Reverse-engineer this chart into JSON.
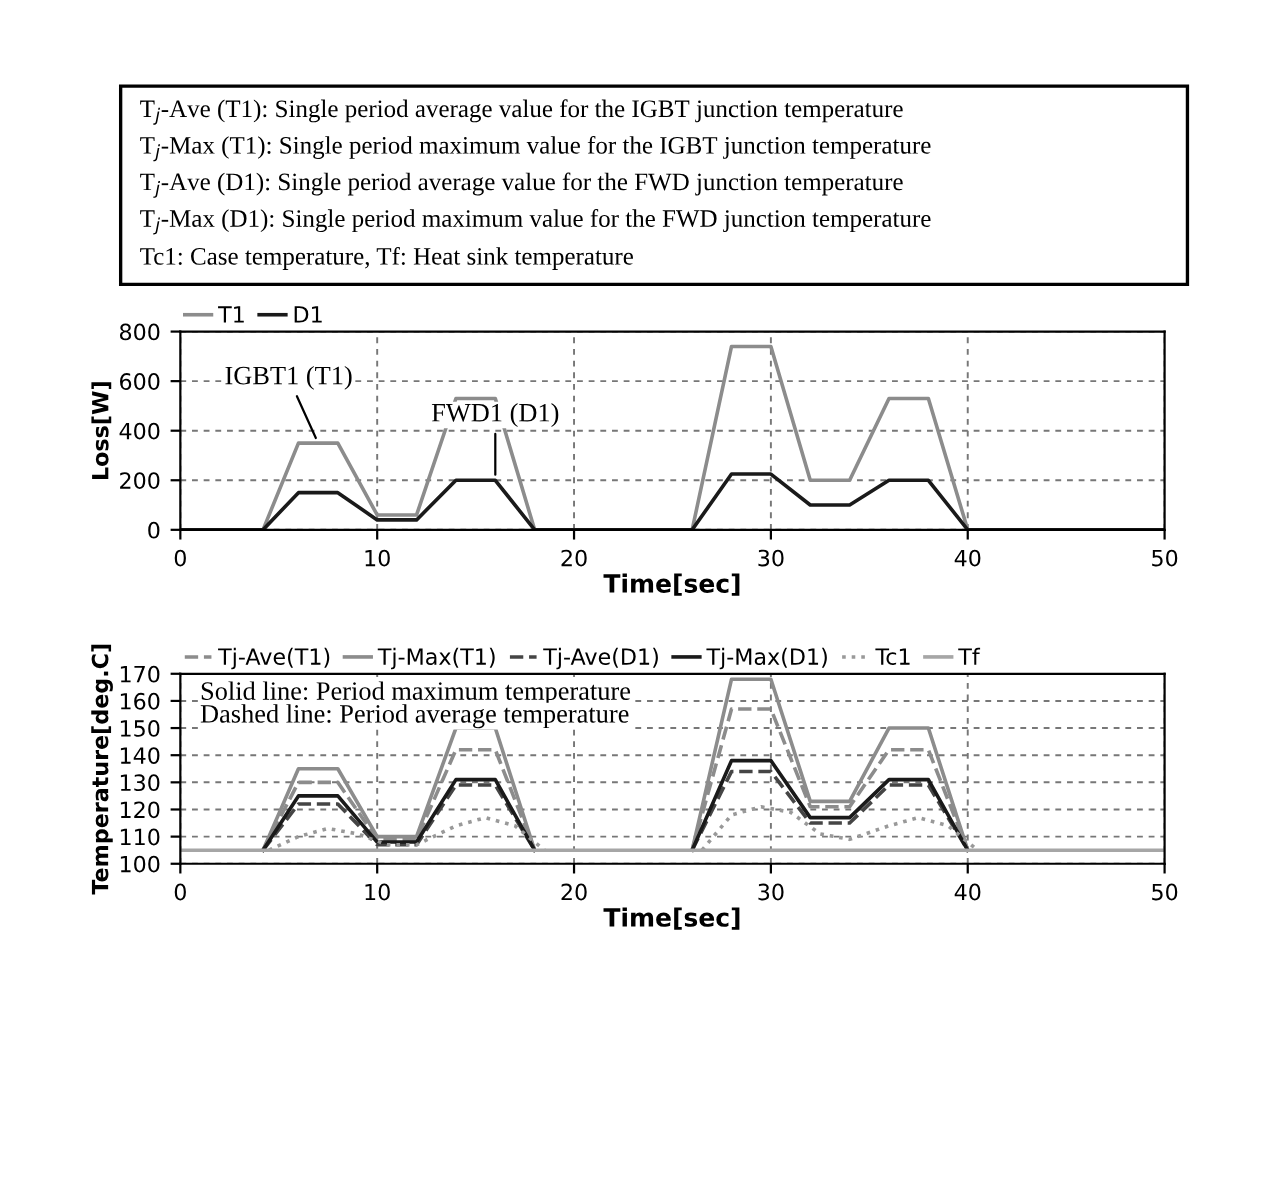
{
  "chart_data": [
    {
      "type": "line",
      "xlabel": "Time[sec]",
      "ylabel": "Loss[W]",
      "xlim": [
        0,
        50
      ],
      "xticks": [
        0,
        10,
        20,
        30,
        40,
        50
      ],
      "ylim": [
        0,
        800
      ],
      "yticks": [
        0,
        200,
        400,
        600,
        800
      ],
      "grid": true,
      "legend": "top left",
      "line_style": "solid",
      "marker": "none",
      "annotations": [
        "T$_{j}$-Ave (T1): Single period average value for the IGBT junction temperature",
        "T$_{j}$-Max (T1): Single period maximum value for the IGBT junction temperature",
        "T$_{j}$-Ave (D1): Single period average value for the FWD junction temperature",
        "T$_{j}$-Max (D1): Single period maximum value for the FWD junction temperature",
        "Tc1: Case temperature, Tf: Heat sink temperature",
        {
          "text": "IGBT1 (T1)",
          "x": 7,
          "y": 350
        },
        {
          "text": "FWD1 (D1)",
          "x": 16,
          "y": 200
        }
      ],
      "x": [
        0,
        4.2,
        6,
        8,
        10,
        12,
        14,
        16,
        18,
        26,
        28,
        30,
        32,
        34,
        36,
        38,
        40,
        50
      ],
      "series": [
        {
          "name": "T1",
          "color": "#8c8c8c",
          "values": [
            0,
            0,
            350,
            350,
            60,
            60,
            530,
            530,
            0,
            0,
            740,
            740,
            200,
            200,
            530,
            530,
            0,
            0
          ]
        },
        {
          "name": "D1",
          "color": "#1a1a1a",
          "values": [
            0,
            0,
            150,
            150,
            40,
            40,
            200,
            200,
            0,
            0,
            225,
            225,
            100,
            100,
            200,
            200,
            0,
            0
          ]
        }
      ]
    },
    {
      "type": "line",
      "xlabel": "Time[sec]",
      "ylabel": "Temperature[deg.C]",
      "xlim": [
        0,
        50
      ],
      "xticks": [
        0,
        10,
        20,
        30,
        40,
        50
      ],
      "ylim": [
        100,
        170
      ],
      "yticks": [
        100,
        110,
        120,
        130,
        140,
        150,
        160,
        170
      ],
      "grid": true,
      "legend": "top left",
      "marker": "none",
      "annotations": [
        "Solid line: Period maximum temperature",
        "Dashed line: Period average temperature"
      ],
      "series": [
        {
          "name": "Tj-Ave(T1)",
          "color": "#8c8c8c",
          "line_style": "dashed",
          "x": [
            4.2,
            6,
            8,
            10,
            12,
            14,
            16,
            18,
            22,
            26,
            28,
            30,
            32,
            34,
            36,
            38,
            40
          ],
          "values": [
            105,
            130,
            130,
            109,
            109,
            142,
            142,
            105,
            null,
            105,
            157,
            157,
            121,
            121,
            142,
            142,
            105
          ]
        },
        {
          "name": "Tj-Max(T1)",
          "color": "#8c8c8c",
          "line_style": "solid",
          "x": [
            4.2,
            6,
            8,
            10,
            12,
            14,
            16,
            18,
            22,
            26,
            28,
            30,
            32,
            34,
            36,
            38,
            40
          ],
          "values": [
            105,
            135,
            135,
            110,
            110,
            150,
            150,
            105,
            null,
            105,
            168,
            168,
            123,
            123,
            150,
            150,
            105
          ]
        },
        {
          "name": "Tj-Ave(D1)",
          "color": "#454545",
          "line_style": "dashed",
          "x": [
            4.2,
            6,
            8,
            10,
            12,
            14,
            16,
            18,
            22,
            26,
            28,
            30,
            32,
            34,
            36,
            38,
            40
          ],
          "values": [
            105,
            122,
            122,
            107,
            107,
            129,
            129,
            105,
            null,
            105,
            134,
            134,
            115,
            115,
            129,
            129,
            105
          ]
        },
        {
          "name": "Tj-Max(D1)",
          "color": "#1a1a1a",
          "line_style": "solid",
          "x": [
            4.2,
            6,
            8,
            10,
            12,
            14,
            16,
            18,
            22,
            26,
            28,
            30,
            32,
            34,
            36,
            38,
            40
          ],
          "values": [
            105,
            125,
            125,
            108,
            108,
            131,
            131,
            105,
            null,
            105,
            138,
            138,
            117,
            117,
            131,
            131,
            105
          ]
        },
        {
          "name": "Tc1",
          "color": "#999999",
          "line_style": "dotted",
          "x": [
            4.5,
            6,
            7.5,
            9,
            10.5,
            12,
            14,
            15.5,
            17,
            18.5,
            22,
            26.5,
            28,
            29.5,
            31,
            32.5,
            34,
            36,
            37.5,
            39,
            40.5
          ],
          "values": [
            105,
            110,
            113,
            111,
            107,
            107,
            114,
            117,
            114,
            105,
            null,
            105,
            118,
            121,
            119,
            111,
            109,
            114,
            117,
            114,
            105
          ]
        },
        {
          "name": "Tf",
          "color": "#a6a6a6",
          "line_style": "solid",
          "x": [
            0,
            50
          ],
          "values": [
            105,
            105
          ]
        }
      ]
    }
  ]
}
